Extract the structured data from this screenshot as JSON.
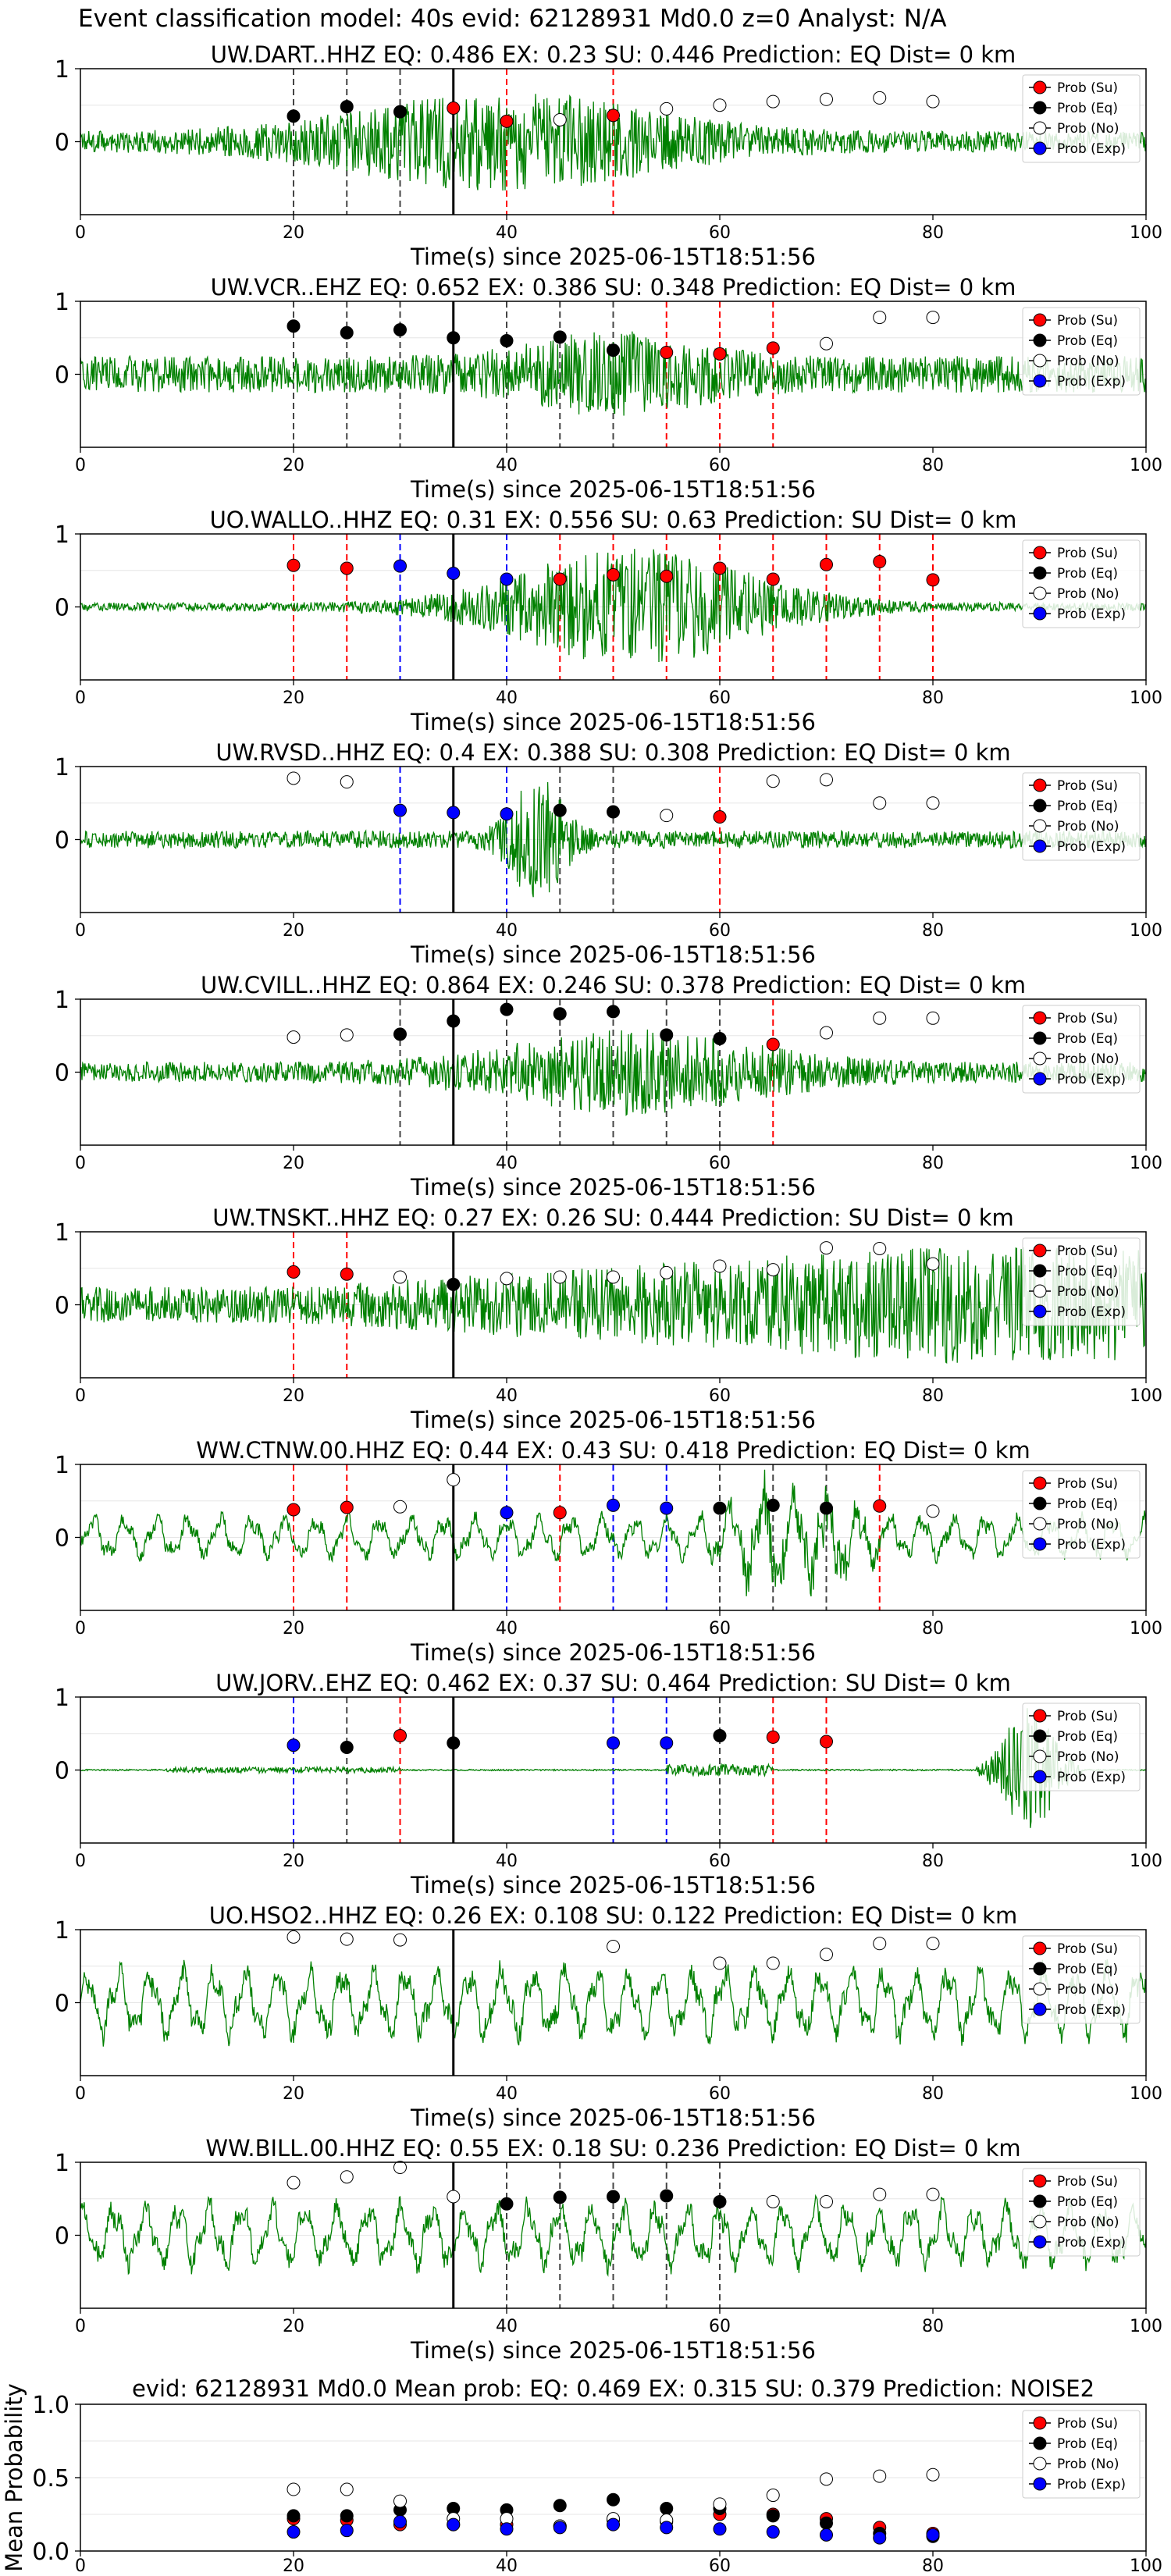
{
  "figure": {
    "suptitle": "Event classification model: 40s evid: 62128931 Md0.0 z=0 Analyst: N/A",
    "xlabel": "Time(s) since 2025-06-15T18:51:56",
    "colors": {
      "su": "#ff0000",
      "eq": "#000000",
      "no": "#ffffff",
      "exp": "#0000ff",
      "wave": "#008000",
      "arrival": "#000000"
    },
    "legend_labels": [
      "Prob (Su)",
      "Prob (Eq)",
      "Prob (No)",
      "Prob (Exp)"
    ]
  },
  "chart_data": [
    {
      "type": "line",
      "title": "UW.DART..HHZ   EQ: 0.486  EX: 0.23  SU: 0.446   Prediction: EQ    Dist= 0 km",
      "xlim": [
        0,
        100
      ],
      "ylim": [
        -1,
        1
      ],
      "xticks": [
        0,
        20,
        40,
        60,
        80,
        100
      ],
      "yticks": [
        0,
        1
      ],
      "xlabel": "Time(s) since 2025-06-15T18:51:56",
      "arrival": 35,
      "waveform": {
        "style": "emergent",
        "amp": 0.55,
        "center": 40,
        "width": 18,
        "base": 0.14
      },
      "points": [
        {
          "x": 20,
          "y": 0.35,
          "cls": "eq"
        },
        {
          "x": 25,
          "y": 0.48,
          "cls": "eq"
        },
        {
          "x": 30,
          "y": 0.41,
          "cls": "eq"
        },
        {
          "x": 35,
          "y": 0.46,
          "cls": "su"
        },
        {
          "x": 40,
          "y": 0.28,
          "cls": "su"
        },
        {
          "x": 45,
          "y": 0.3,
          "cls": "no"
        },
        {
          "x": 50,
          "y": 0.36,
          "cls": "su"
        },
        {
          "x": 55,
          "y": 0.45,
          "cls": "no"
        },
        {
          "x": 60,
          "y": 0.5,
          "cls": "no"
        },
        {
          "x": 65,
          "y": 0.55,
          "cls": "no"
        },
        {
          "x": 70,
          "y": 0.58,
          "cls": "no"
        },
        {
          "x": 75,
          "y": 0.6,
          "cls": "no"
        },
        {
          "x": 80,
          "y": 0.55,
          "cls": "no"
        }
      ]
    },
    {
      "type": "line",
      "title": "UW.VCR..EHZ   EQ: 0.652  EX: 0.386  SU: 0.348   Prediction: EQ    Dist= 0 km",
      "xlim": [
        0,
        100
      ],
      "ylim": [
        -1,
        1
      ],
      "xticks": [
        0,
        20,
        40,
        60,
        80,
        100
      ],
      "yticks": [
        0,
        1
      ],
      "xlabel": "Time(s) since 2025-06-15T18:51:56",
      "arrival": 35,
      "waveform": {
        "style": "mixed",
        "amp": 0.35,
        "center": 50,
        "width": 10,
        "base": 0.25
      },
      "points": [
        {
          "x": 20,
          "y": 0.66,
          "cls": "eq"
        },
        {
          "x": 25,
          "y": 0.57,
          "cls": "eq"
        },
        {
          "x": 30,
          "y": 0.61,
          "cls": "eq"
        },
        {
          "x": 35,
          "y": 0.5,
          "cls": "eq"
        },
        {
          "x": 40,
          "y": 0.46,
          "cls": "eq"
        },
        {
          "x": 45,
          "y": 0.51,
          "cls": "eq"
        },
        {
          "x": 50,
          "y": 0.33,
          "cls": "eq"
        },
        {
          "x": 55,
          "y": 0.3,
          "cls": "su"
        },
        {
          "x": 60,
          "y": 0.28,
          "cls": "su"
        },
        {
          "x": 65,
          "y": 0.36,
          "cls": "su"
        },
        {
          "x": 70,
          "y": 0.42,
          "cls": "no"
        },
        {
          "x": 75,
          "y": 0.78,
          "cls": "no"
        },
        {
          "x": 80,
          "y": 0.78,
          "cls": "no"
        }
      ]
    },
    {
      "type": "line",
      "title": "UO.WALLO..HHZ   EQ: 0.31  EX: 0.556  SU: 0.63   Prediction: SU    Dist= 0 km",
      "xlim": [
        0,
        100
      ],
      "ylim": [
        -1,
        1
      ],
      "xticks": [
        0,
        20,
        40,
        60,
        80,
        100
      ],
      "yticks": [
        0,
        1
      ],
      "xlabel": "Time(s) since 2025-06-15T18:51:56",
      "arrival": 35,
      "waveform": {
        "style": "burst",
        "amp": 0.75,
        "center": 52,
        "width": 14,
        "base": 0.06
      },
      "points": [
        {
          "x": 20,
          "y": 0.57,
          "cls": "su"
        },
        {
          "x": 25,
          "y": 0.53,
          "cls": "su"
        },
        {
          "x": 30,
          "y": 0.56,
          "cls": "exp"
        },
        {
          "x": 35,
          "y": 0.46,
          "cls": "exp"
        },
        {
          "x": 40,
          "y": 0.38,
          "cls": "exp"
        },
        {
          "x": 45,
          "y": 0.38,
          "cls": "su"
        },
        {
          "x": 50,
          "y": 0.44,
          "cls": "su"
        },
        {
          "x": 55,
          "y": 0.42,
          "cls": "su"
        },
        {
          "x": 60,
          "y": 0.53,
          "cls": "su"
        },
        {
          "x": 65,
          "y": 0.38,
          "cls": "su"
        },
        {
          "x": 70,
          "y": 0.58,
          "cls": "su"
        },
        {
          "x": 75,
          "y": 0.62,
          "cls": "su"
        },
        {
          "x": 80,
          "y": 0.37,
          "cls": "su"
        }
      ]
    },
    {
      "type": "line",
      "title": "UW.RVSD..HHZ   EQ: 0.4  EX: 0.388  SU: 0.308   Prediction: EQ    Dist= 0 km",
      "xlim": [
        0,
        100
      ],
      "ylim": [
        -1,
        1
      ],
      "xticks": [
        0,
        20,
        40,
        60,
        80,
        100
      ],
      "yticks": [
        0,
        1
      ],
      "xlabel": "Time(s) since 2025-06-15T18:51:56",
      "arrival": 35,
      "waveform": {
        "style": "spike",
        "amp": 0.75,
        "center": 43,
        "width": 3,
        "base": 0.12
      },
      "points": [
        {
          "x": 20,
          "y": 0.84,
          "cls": "no"
        },
        {
          "x": 25,
          "y": 0.79,
          "cls": "no"
        },
        {
          "x": 30,
          "y": 0.4,
          "cls": "exp"
        },
        {
          "x": 35,
          "y": 0.37,
          "cls": "exp"
        },
        {
          "x": 40,
          "y": 0.35,
          "cls": "exp"
        },
        {
          "x": 45,
          "y": 0.4,
          "cls": "eq"
        },
        {
          "x": 50,
          "y": 0.38,
          "cls": "eq"
        },
        {
          "x": 55,
          "y": 0.33,
          "cls": "no"
        },
        {
          "x": 60,
          "y": 0.31,
          "cls": "su"
        },
        {
          "x": 65,
          "y": 0.8,
          "cls": "no"
        },
        {
          "x": 70,
          "y": 0.82,
          "cls": "no"
        },
        {
          "x": 75,
          "y": 0.5,
          "cls": "no"
        },
        {
          "x": 80,
          "y": 0.5,
          "cls": "no"
        }
      ]
    },
    {
      "type": "line",
      "title": "UW.CVILL..HHZ   EQ: 0.864  EX: 0.246  SU: 0.378   Prediction: EQ    Dist= 0 km",
      "xlim": [
        0,
        100
      ],
      "ylim": [
        -1,
        1
      ],
      "xticks": [
        0,
        20,
        40,
        60,
        80,
        100
      ],
      "yticks": [
        0,
        1
      ],
      "xlabel": "Time(s) since 2025-06-15T18:51:56",
      "arrival": 35,
      "waveform": {
        "style": "emergent",
        "amp": 0.45,
        "center": 52,
        "width": 15,
        "base": 0.14
      },
      "points": [
        {
          "x": 20,
          "y": 0.48,
          "cls": "no"
        },
        {
          "x": 25,
          "y": 0.51,
          "cls": "no"
        },
        {
          "x": 30,
          "y": 0.52,
          "cls": "eq"
        },
        {
          "x": 35,
          "y": 0.7,
          "cls": "eq"
        },
        {
          "x": 40,
          "y": 0.86,
          "cls": "eq"
        },
        {
          "x": 45,
          "y": 0.8,
          "cls": "eq"
        },
        {
          "x": 50,
          "y": 0.83,
          "cls": "eq"
        },
        {
          "x": 55,
          "y": 0.51,
          "cls": "eq"
        },
        {
          "x": 60,
          "y": 0.46,
          "cls": "eq"
        },
        {
          "x": 65,
          "y": 0.38,
          "cls": "su"
        },
        {
          "x": 70,
          "y": 0.54,
          "cls": "no"
        },
        {
          "x": 75,
          "y": 0.74,
          "cls": "no"
        },
        {
          "x": 80,
          "y": 0.74,
          "cls": "no"
        }
      ]
    },
    {
      "type": "line",
      "title": "UW.TNSKT..HHZ   EQ: 0.27  EX: 0.26  SU: 0.444   Prediction: SU    Dist= 0 km",
      "xlim": [
        0,
        100
      ],
      "ylim": [
        -1,
        1
      ],
      "xticks": [
        0,
        20,
        40,
        60,
        80,
        100
      ],
      "yticks": [
        0,
        1
      ],
      "xlabel": "Time(s) since 2025-06-15T18:51:56",
      "arrival": 35,
      "waveform": {
        "style": "growing",
        "amp": 0.55,
        "center": 60,
        "width": 40,
        "base": 0.25
      },
      "points": [
        {
          "x": 20,
          "y": 0.45,
          "cls": "su"
        },
        {
          "x": 25,
          "y": 0.42,
          "cls": "su"
        },
        {
          "x": 30,
          "y": 0.38,
          "cls": "no"
        },
        {
          "x": 35,
          "y": 0.28,
          "cls": "eq"
        },
        {
          "x": 40,
          "y": 0.36,
          "cls": "no"
        },
        {
          "x": 45,
          "y": 0.38,
          "cls": "no"
        },
        {
          "x": 50,
          "y": 0.38,
          "cls": "no"
        },
        {
          "x": 55,
          "y": 0.44,
          "cls": "no"
        },
        {
          "x": 60,
          "y": 0.53,
          "cls": "no"
        },
        {
          "x": 65,
          "y": 0.48,
          "cls": "no"
        },
        {
          "x": 70,
          "y": 0.78,
          "cls": "no"
        },
        {
          "x": 75,
          "y": 0.77,
          "cls": "no"
        },
        {
          "x": 80,
          "y": 0.56,
          "cls": "no"
        }
      ]
    },
    {
      "type": "line",
      "title": "WW.CTNW.00.HHZ   EQ: 0.44  EX: 0.43  SU: 0.418   Prediction: EQ    Dist= 0 km",
      "xlim": [
        0,
        100
      ],
      "ylim": [
        -1,
        1
      ],
      "xticks": [
        0,
        20,
        40,
        60,
        80,
        100
      ],
      "yticks": [
        0,
        1
      ],
      "xlabel": "Time(s) since 2025-06-15T18:51:56",
      "arrival": 35,
      "waveform": {
        "style": "oscillating",
        "amp": 0.45,
        "center": 67,
        "width": 6,
        "base": 0.3
      },
      "points": [
        {
          "x": 20,
          "y": 0.38,
          "cls": "su"
        },
        {
          "x": 25,
          "y": 0.41,
          "cls": "su"
        },
        {
          "x": 30,
          "y": 0.42,
          "cls": "no"
        },
        {
          "x": 35,
          "y": 0.79,
          "cls": "no"
        },
        {
          "x": 40,
          "y": 0.34,
          "cls": "exp"
        },
        {
          "x": 45,
          "y": 0.34,
          "cls": "su"
        },
        {
          "x": 50,
          "y": 0.44,
          "cls": "exp"
        },
        {
          "x": 55,
          "y": 0.4,
          "cls": "exp"
        },
        {
          "x": 60,
          "y": 0.4,
          "cls": "eq"
        },
        {
          "x": 65,
          "y": 0.44,
          "cls": "eq"
        },
        {
          "x": 70,
          "y": 0.4,
          "cls": "eq"
        },
        {
          "x": 75,
          "y": 0.43,
          "cls": "su"
        },
        {
          "x": 80,
          "y": 0.36,
          "cls": "no"
        }
      ]
    },
    {
      "type": "line",
      "title": "UW.JORV..EHZ   EQ: 0.462  EX: 0.37  SU: 0.464   Prediction: SU    Dist= 0 km",
      "xlim": [
        0,
        100
      ],
      "ylim": [
        -1,
        1
      ],
      "xticks": [
        0,
        20,
        40,
        60,
        80,
        100
      ],
      "yticks": [
        0,
        1
      ],
      "xlabel": "Time(s) since 2025-06-15T18:51:56",
      "arrival": 35,
      "waveform": {
        "style": "quiet",
        "amp": 0.85,
        "center": 90,
        "width": 5,
        "base": 0.01
      },
      "points": [
        {
          "x": 20,
          "y": 0.34,
          "cls": "exp"
        },
        {
          "x": 25,
          "y": 0.31,
          "cls": "eq"
        },
        {
          "x": 30,
          "y": 0.47,
          "cls": "su"
        },
        {
          "x": 35,
          "y": 0.37,
          "cls": "eq"
        },
        {
          "x": 50,
          "y": 0.37,
          "cls": "exp"
        },
        {
          "x": 55,
          "y": 0.37,
          "cls": "exp"
        },
        {
          "x": 60,
          "y": 0.47,
          "cls": "eq"
        },
        {
          "x": 65,
          "y": 0.45,
          "cls": "su"
        },
        {
          "x": 70,
          "y": 0.39,
          "cls": "su"
        }
      ]
    },
    {
      "type": "line",
      "title": "UO.HSO2..HHZ   EQ: 0.26  EX: 0.108  SU: 0.122   Prediction: EQ    Dist= 0 km",
      "xlim": [
        0,
        100
      ],
      "ylim": [
        -1,
        1
      ],
      "xticks": [
        0,
        20,
        40,
        60,
        80,
        100
      ],
      "yticks": [
        0,
        1
      ],
      "xlabel": "Time(s) since 2025-06-15T18:51:56",
      "arrival": 35,
      "waveform": {
        "style": "lowfreq",
        "amp": 0.1,
        "center": 50,
        "width": 40,
        "base": 0.5
      },
      "points": [
        {
          "x": 20,
          "y": 0.9,
          "cls": "no"
        },
        {
          "x": 25,
          "y": 0.87,
          "cls": "no"
        },
        {
          "x": 30,
          "y": 0.86,
          "cls": "no"
        },
        {
          "x": 50,
          "y": 0.77,
          "cls": "no"
        },
        {
          "x": 60,
          "y": 0.54,
          "cls": "no"
        },
        {
          "x": 65,
          "y": 0.54,
          "cls": "no"
        },
        {
          "x": 70,
          "y": 0.66,
          "cls": "no"
        },
        {
          "x": 75,
          "y": 0.81,
          "cls": "no"
        },
        {
          "x": 80,
          "y": 0.81,
          "cls": "no"
        }
      ]
    },
    {
      "type": "line",
      "title": "WW.BILL.00.HHZ   EQ: 0.55  EX: 0.18  SU: 0.236   Prediction: EQ    Dist= 0 km",
      "xlim": [
        0,
        100
      ],
      "ylim": [
        -1,
        1
      ],
      "xticks": [
        0,
        20,
        40,
        60,
        80,
        100
      ],
      "yticks": [
        0,
        1
      ],
      "xlabel": "Time(s) since 2025-06-15T18:51:56",
      "arrival": 35,
      "waveform": {
        "style": "lowfreq",
        "amp": 0.2,
        "center": 50,
        "width": 40,
        "base": 0.45
      },
      "points": [
        {
          "x": 20,
          "y": 0.72,
          "cls": "no"
        },
        {
          "x": 25,
          "y": 0.8,
          "cls": "no"
        },
        {
          "x": 30,
          "y": 0.93,
          "cls": "no"
        },
        {
          "x": 35,
          "y": 0.53,
          "cls": "no"
        },
        {
          "x": 40,
          "y": 0.43,
          "cls": "eq"
        },
        {
          "x": 45,
          "y": 0.52,
          "cls": "eq"
        },
        {
          "x": 50,
          "y": 0.53,
          "cls": "eq"
        },
        {
          "x": 55,
          "y": 0.54,
          "cls": "eq"
        },
        {
          "x": 60,
          "y": 0.46,
          "cls": "eq"
        },
        {
          "x": 65,
          "y": 0.46,
          "cls": "no"
        },
        {
          "x": 70,
          "y": 0.46,
          "cls": "no"
        },
        {
          "x": 75,
          "y": 0.56,
          "cls": "no"
        },
        {
          "x": 80,
          "y": 0.56,
          "cls": "no"
        }
      ]
    },
    {
      "type": "scatter",
      "title": "evid: 62128931  Md0.0   Mean prob:   EQ: 0.469  EX: 0.315  SU: 0.379   Prediction: NOISE2",
      "ylabel": "Mean Probability",
      "xlim": [
        0,
        100
      ],
      "ylim": [
        0,
        1
      ],
      "xticks": [
        0,
        20,
        40,
        60,
        80,
        100
      ],
      "yticks": [
        0.0,
        0.5,
        1.0
      ],
      "series": [
        {
          "name": "Prob (Su)",
          "cls": "su",
          "x": [
            20,
            25,
            30,
            35,
            40,
            45,
            50,
            55,
            60,
            65,
            70,
            75,
            80
          ],
          "y": [
            0.22,
            0.21,
            0.18,
            0.18,
            0.18,
            0.17,
            0.21,
            0.2,
            0.25,
            0.25,
            0.22,
            0.16,
            0.12
          ]
        },
        {
          "name": "Prob (Eq)",
          "cls": "eq",
          "x": [
            20,
            25,
            30,
            35,
            40,
            45,
            50,
            55,
            60,
            65,
            70,
            75,
            80
          ],
          "y": [
            0.24,
            0.24,
            0.28,
            0.29,
            0.28,
            0.31,
            0.35,
            0.29,
            0.29,
            0.24,
            0.19,
            0.12,
            0.1
          ]
        },
        {
          "name": "Prob (No)",
          "cls": "no",
          "x": [
            20,
            25,
            30,
            35,
            40,
            45,
            50,
            55,
            60,
            65,
            70,
            75,
            80
          ],
          "y": [
            0.42,
            0.42,
            0.34,
            0.22,
            0.22,
            0.17,
            0.22,
            0.21,
            0.32,
            0.38,
            0.49,
            0.51,
            0.52
          ]
        },
        {
          "name": "Prob (Exp)",
          "cls": "exp",
          "x": [
            20,
            25,
            30,
            35,
            40,
            45,
            50,
            55,
            60,
            65,
            70,
            75,
            80
          ],
          "y": [
            0.13,
            0.14,
            0.2,
            0.18,
            0.15,
            0.16,
            0.18,
            0.16,
            0.15,
            0.13,
            0.11,
            0.09,
            0.11
          ]
        }
      ]
    }
  ]
}
